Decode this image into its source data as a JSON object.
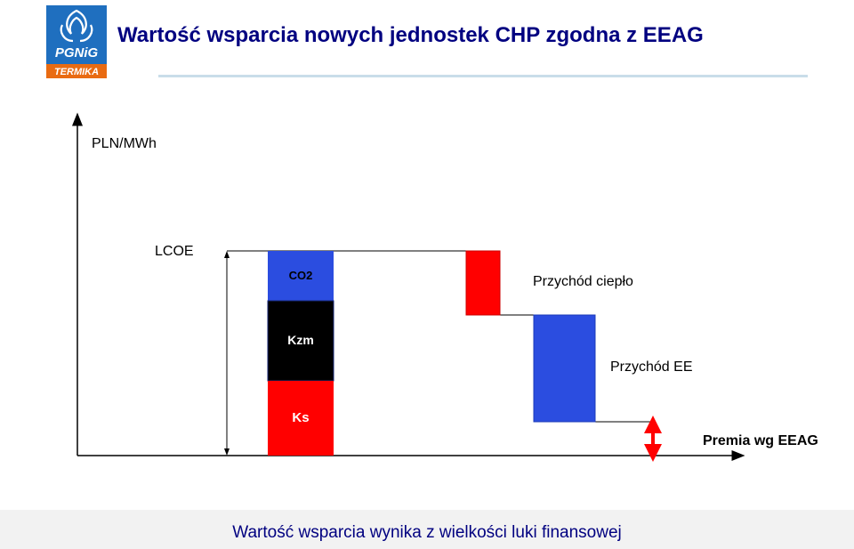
{
  "header": {
    "title": "Wartość wsparcia nowych jednostek CHP zgodna z EEAG",
    "logo": {
      "brand": "PGNiG",
      "sub": "TERMIKA",
      "icon": "flame-logo-icon",
      "bg_color": "#1f6fbf",
      "sub_color": "#e96b12"
    }
  },
  "diagram": {
    "y_axis_label": "PLN/MWh",
    "lcoe_label": "LCOE",
    "stack": [
      {
        "label": "CO2",
        "color": "#2b4de0"
      },
      {
        "label": "Kzm",
        "color": "#000000"
      },
      {
        "label": "Ks",
        "color": "#ff0000"
      }
    ],
    "heat_revenue": {
      "label": "Przychód ciepło",
      "color": "#ff0000"
    },
    "ee_revenue": {
      "label": "Przychód EE",
      "color": "#2b4de0"
    },
    "premium": {
      "label": "Premia wg EEAG",
      "color": "#ff0000"
    }
  },
  "footer": {
    "text": "Wartość wsparcia wynika z wielkości luki finansowej"
  }
}
